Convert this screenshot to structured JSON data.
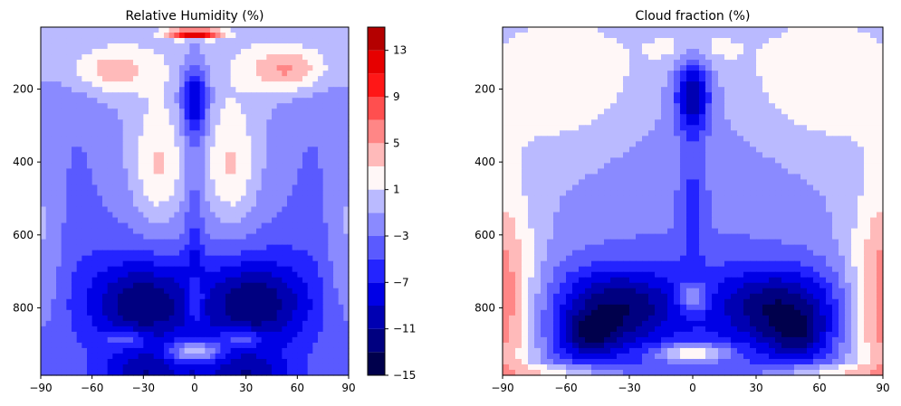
{
  "chart_data": [
    {
      "type": "heatmap",
      "title": "Relative Humidity (%)",
      "xlabel": "",
      "ylabel": "",
      "x_ticks": [
        "−90",
        "−60",
        "−30",
        "0",
        "30",
        "60",
        "90"
      ],
      "y_ticks": [
        "200",
        "400",
        "600",
        "800"
      ],
      "xlim": [
        -90,
        90
      ],
      "ylim": [
        985,
        30
      ],
      "y_inverted": true,
      "features": [
        {
          "kind": "max",
          "lat": 0,
          "p": 50,
          "value": 15
        },
        {
          "kind": "max",
          "lat": -50,
          "p": 150,
          "value": 4
        },
        {
          "kind": "max",
          "lat": 55,
          "p": 145,
          "value": 6
        },
        {
          "kind": "max",
          "lat": -22,
          "p": 420,
          "value": 3
        },
        {
          "kind": "max",
          "lat": 22,
          "p": 420,
          "value": 3
        },
        {
          "kind": "min",
          "lat": 0,
          "p": 230,
          "value": -9
        },
        {
          "kind": "min",
          "lat": -30,
          "p": 790,
          "value": -13
        },
        {
          "kind": "min",
          "lat": 35,
          "p": 790,
          "value": -13
        },
        {
          "kind": "min",
          "lat": -28,
          "p": 990,
          "value": -11
        },
        {
          "kind": "min",
          "lat": 30,
          "p": 990,
          "value": -11
        },
        {
          "kind": "max",
          "lat": 0,
          "p": 920,
          "value": 2
        }
      ]
    },
    {
      "type": "heatmap",
      "title": "Cloud fraction (%)",
      "xlabel": "",
      "ylabel": "",
      "x_ticks": [
        "−90",
        "−60",
        "−30",
        "0",
        "30",
        "60",
        "90"
      ],
      "y_ticks": [
        "200",
        "400",
        "600",
        "800"
      ],
      "xlim": [
        -90,
        90
      ],
      "ylim": [
        985,
        30
      ],
      "y_inverted": true,
      "features": [
        {
          "kind": "min",
          "lat": 0,
          "p": 210,
          "value": -9
        },
        {
          "kind": "max",
          "lat": -85,
          "p": 720,
          "value": 6
        },
        {
          "kind": "max",
          "lat": 85,
          "p": 720,
          "value": 6
        },
        {
          "kind": "min",
          "lat": -35,
          "p": 790,
          "value": -13
        },
        {
          "kind": "min",
          "lat": 40,
          "p": 790,
          "value": -13
        },
        {
          "kind": "min",
          "lat": -50,
          "p": 880,
          "value": -13
        },
        {
          "kind": "min",
          "lat": 50,
          "p": 880,
          "value": -11
        },
        {
          "kind": "min",
          "lat": 0,
          "p": 980,
          "value": -7
        },
        {
          "kind": "max",
          "lat": 0,
          "p": 920,
          "value": 2
        }
      ]
    }
  ],
  "colorbar": {
    "levels": [
      -15,
      -13,
      -11,
      -9,
      -7,
      -5,
      -3,
      -1,
      1,
      3,
      5,
      7,
      9,
      11,
      13,
      15
    ],
    "tick_labels": [
      "13",
      "9",
      "5",
      "1",
      "−3",
      "−7",
      "−11",
      "−15"
    ],
    "colors": [
      "#00004c",
      "#000080",
      "#0000b2",
      "#0000e6",
      "#2424ff",
      "#5a5aff",
      "#8a8aff",
      "#babaff",
      "#fff7f7",
      "#ffbaba",
      "#ff8686",
      "#ff4f4f",
      "#ff1717",
      "#e60000",
      "#b40000",
      "#800000"
    ]
  }
}
